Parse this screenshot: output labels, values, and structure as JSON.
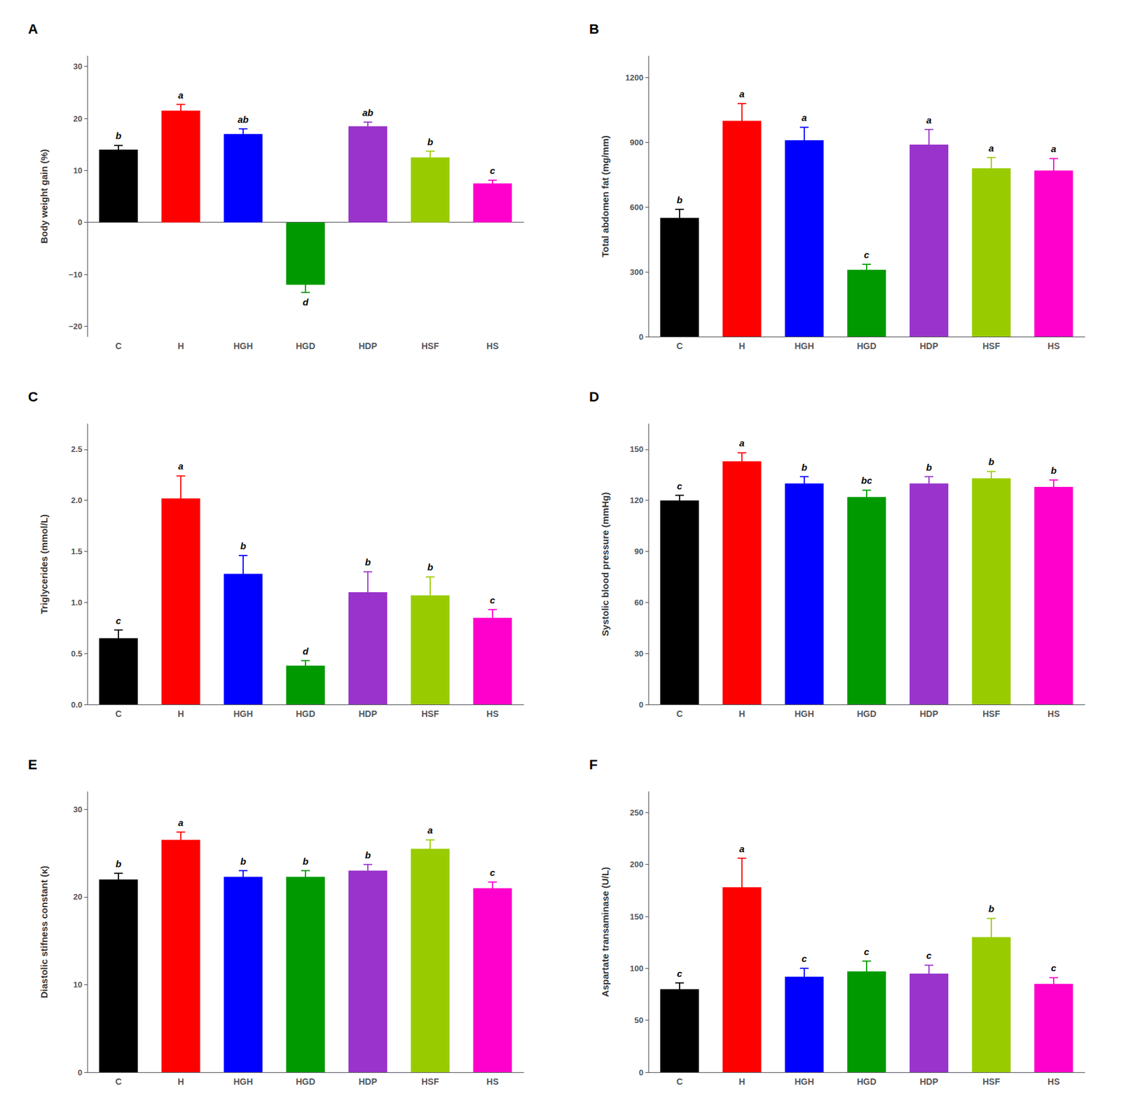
{
  "chart_data": [
    {
      "type": "bar",
      "title": "A",
      "ylabel": "Body weight gain (%)",
      "categories": [
        "C",
        "H",
        "HGH",
        "HGD",
        "HDP",
        "HSF",
        "HS"
      ],
      "values": [
        14.0,
        21.5,
        17.0,
        -12.0,
        18.5,
        12.5,
        7.5
      ],
      "errors": [
        0.8,
        1.2,
        1.0,
        1.5,
        0.8,
        1.2,
        0.6
      ],
      "colors": [
        "#000000",
        "#ff0000",
        "#0000ff",
        "#009900",
        "#9933cc",
        "#99cc00",
        "#ff00cc"
      ],
      "annotations": [
        "b",
        "a",
        "ab",
        "d",
        "ab",
        "b",
        "c"
      ],
      "ylim": [
        -22,
        32
      ],
      "yticks": [
        {
          "value": -20,
          "label": "−20"
        },
        {
          "value": -10,
          "label": "−10"
        },
        0,
        10,
        20,
        30
      ],
      "grid": false
    },
    {
      "type": "bar",
      "title": "B",
      "ylabel": "Total abdomen fat (mg/mm)",
      "categories": [
        "C",
        "H",
        "HGH",
        "HGD",
        "HDP",
        "HSF",
        "HS"
      ],
      "values": [
        550,
        1000,
        910,
        310,
        890,
        780,
        770
      ],
      "errors": [
        40,
        80,
        60,
        25,
        70,
        50,
        55
      ],
      "colors": [
        "#000000",
        "#ff0000",
        "#0000ff",
        "#009900",
        "#9933cc",
        "#99cc00",
        "#ff00cc"
      ],
      "annotations": [
        "b",
        "a",
        "a",
        "c",
        "a",
        "a",
        "a"
      ],
      "ylim": [
        0,
        1300
      ],
      "yticks": [
        0,
        300,
        600,
        900,
        1200
      ],
      "grid": false
    },
    {
      "type": "bar",
      "title": "C",
      "ylabel": "Triglycerides (mmol/L)",
      "categories": [
        "C",
        "H",
        "HGH",
        "HGD",
        "HDP",
        "HSF",
        "HS"
      ],
      "values": [
        0.65,
        2.02,
        1.28,
        0.38,
        1.1,
        1.07,
        0.85
      ],
      "errors": [
        0.08,
        0.22,
        0.18,
        0.05,
        0.2,
        0.18,
        0.08
      ],
      "colors": [
        "#000000",
        "#ff0000",
        "#0000ff",
        "#009900",
        "#9933cc",
        "#99cc00",
        "#ff00cc"
      ],
      "annotations": [
        "c",
        "a",
        "b",
        "d",
        "b",
        "b",
        "c"
      ],
      "ylim": [
        0,
        2.75
      ],
      "yticks": [
        {
          "value": 0,
          "label": "0.0"
        },
        0.5,
        {
          "value": 1,
          "label": "1.0"
        },
        1.5,
        {
          "value": 2,
          "label": "2.0"
        },
        2.5
      ],
      "grid": false
    },
    {
      "type": "bar",
      "title": "D",
      "ylabel": "Systolic blood pressure (mmHg)",
      "categories": [
        "C",
        "H",
        "HGH",
        "HGD",
        "HDP",
        "HSF",
        "HS"
      ],
      "values": [
        120,
        143,
        130,
        122,
        130,
        133,
        128
      ],
      "errors": [
        3,
        5,
        4,
        4,
        4,
        4,
        4
      ],
      "colors": [
        "#000000",
        "#ff0000",
        "#0000ff",
        "#009900",
        "#9933cc",
        "#99cc00",
        "#ff00cc"
      ],
      "annotations": [
        "c",
        "a",
        "b",
        "bc",
        "b",
        "b",
        "b"
      ],
      "ylim": [
        0,
        165
      ],
      "yticks": [
        0,
        30,
        60,
        90,
        120,
        150
      ],
      "grid": false
    },
    {
      "type": "bar",
      "title": "E",
      "ylabel": "Diastolic stifness constant (κ)",
      "categories": [
        "C",
        "H",
        "HGH",
        "HGD",
        "HDP",
        "HSF",
        "HS"
      ],
      "values": [
        22.0,
        26.5,
        22.3,
        22.3,
        23.0,
        25.5,
        21.0
      ],
      "errors": [
        0.7,
        0.9,
        0.7,
        0.7,
        0.7,
        1.0,
        0.7
      ],
      "colors": [
        "#000000",
        "#ff0000",
        "#0000ff",
        "#009900",
        "#9933cc",
        "#99cc00",
        "#ff00cc"
      ],
      "annotations": [
        "b",
        "a",
        "b",
        "b",
        "b",
        "a",
        "c"
      ],
      "ylim": [
        0,
        32
      ],
      "yticks": [
        0,
        10,
        20,
        30
      ],
      "grid": false
    },
    {
      "type": "bar",
      "title": "F",
      "ylabel": "Aspartate transaminase (U/L)",
      "categories": [
        "C",
        "H",
        "HGH",
        "HGD",
        "HDP",
        "HSF",
        "HS"
      ],
      "values": [
        80,
        178,
        92,
        97,
        95,
        130,
        85
      ],
      "errors": [
        6,
        28,
        8,
        10,
        8,
        18,
        6
      ],
      "colors": [
        "#000000",
        "#ff0000",
        "#0000ff",
        "#009900",
        "#9933cc",
        "#99cc00",
        "#ff00cc"
      ],
      "annotations": [
        "c",
        "a",
        "c",
        "c",
        "c",
        "b",
        "c"
      ],
      "ylim": [
        0,
        270
      ],
      "yticks": [
        0,
        50,
        100,
        150,
        200,
        250
      ],
      "grid": false
    }
  ]
}
